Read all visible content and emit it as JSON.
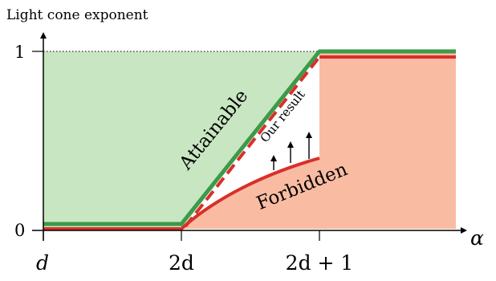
{
  "diagram": {
    "y_axis_title": "Light cone exponent",
    "x_axis_symbol": "α",
    "x_ticks": [
      "d",
      "2d",
      "2d + 1"
    ],
    "y_ticks": [
      "0",
      "1"
    ],
    "regions": {
      "attainable": "Attainable",
      "forbidden": "Forbidden",
      "our_result": "Our result"
    },
    "colors": {
      "attainable_fill": "#c8e6c2",
      "attainable_line": "#3c9a48",
      "forbidden_fill": "#f9bca3",
      "forbidden_line": "#d8302a",
      "dashed_line": "#d8302a"
    }
  }
}
